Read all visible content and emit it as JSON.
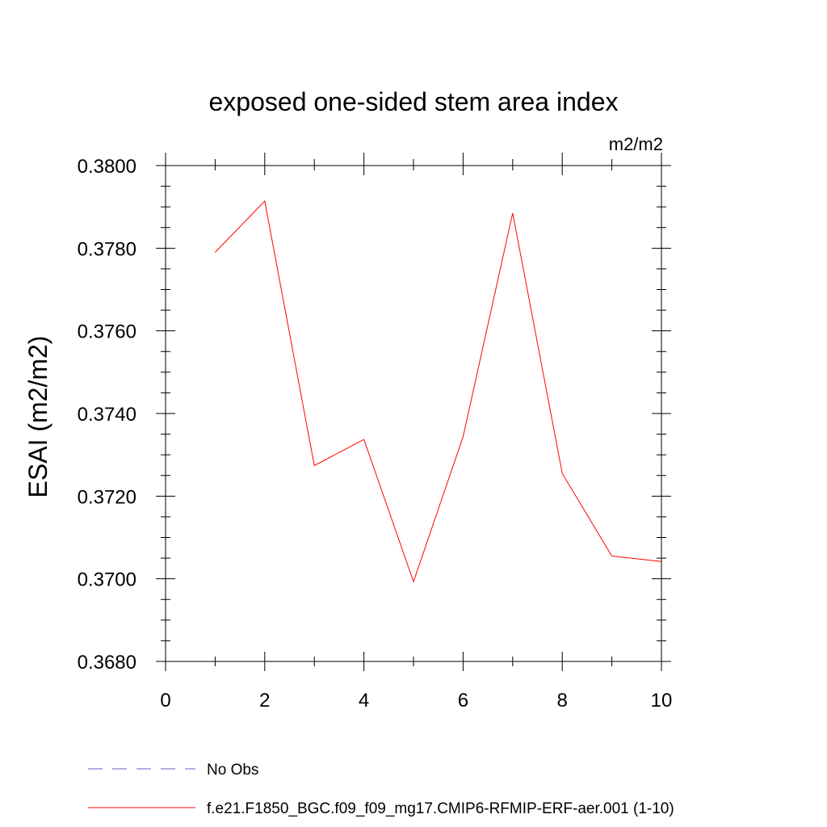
{
  "chart_data": {
    "type": "line",
    "title": "exposed one-sided stem area index",
    "units_label": "m2/m2",
    "xlabel": "",
    "ylabel": "ESAI  (m2/m2)",
    "xlim": [
      0,
      10
    ],
    "ylim": [
      0.368,
      0.38
    ],
    "x_ticks": [
      0,
      2,
      4,
      6,
      8,
      10
    ],
    "x_tick_labels": [
      "0",
      "2",
      "4",
      "6",
      "8",
      "10"
    ],
    "y_ticks": [
      0.368,
      0.37,
      0.372,
      0.374,
      0.376,
      0.378,
      0.38
    ],
    "y_tick_labels": [
      "0.3680",
      "0.3700",
      "0.3720",
      "0.3740",
      "0.3760",
      "0.3780",
      "0.3800"
    ],
    "grid": false,
    "legend_position": "bottom",
    "series": [
      {
        "name": "No Obs",
        "color": "#6a5acd",
        "style": "dashed",
        "x": [],
        "y": []
      },
      {
        "name": "f.e21.F1850_BGC.f09_f09_mg17.CMIP6-RFMIP-ERF-aer.001 (1-10)",
        "color": "#ff0000",
        "style": "solid",
        "x": [
          1,
          2,
          3,
          4,
          5,
          6,
          7,
          8,
          9,
          10
        ],
        "y": [
          0.3779,
          0.37914,
          0.37274,
          0.37337,
          0.36993,
          0.37344,
          0.37885,
          0.37255,
          0.37055,
          0.37042
        ]
      }
    ]
  }
}
